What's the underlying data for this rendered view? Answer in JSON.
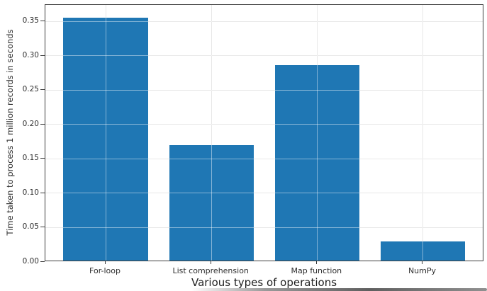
{
  "chart_data": {
    "type": "bar",
    "title": "",
    "categories": [
      "For-loop",
      "List comprehension",
      "Map function",
      "NumPy"
    ],
    "values": [
      0.355,
      0.17,
      0.286,
      0.03
    ],
    "xlabel": "Various types of operations",
    "ylabel": "Time taken to process 1 million records in seconds",
    "ylim": [
      0,
      0.374
    ],
    "xlim": [
      -0.57,
      3.58
    ],
    "yticks": [
      0,
      0.05,
      0.1,
      0.15,
      0.2,
      0.25,
      0.3,
      0.35
    ],
    "ytick_labels": [
      "0.00",
      "0.05",
      "0.10",
      "0.15",
      "0.20",
      "0.25",
      "0.30",
      "0.35"
    ],
    "bar_width": 0.8,
    "bar_color": "#1f77b4",
    "grid": true,
    "gridline_color": "#d6d6d6",
    "spine_color": "#3c3c3c",
    "legend": "none"
  }
}
